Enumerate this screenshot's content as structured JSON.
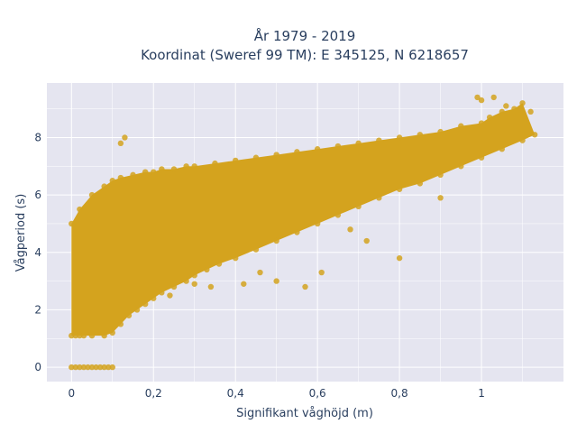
{
  "chart_data": {
    "type": "scatter",
    "title_lines": [
      "År 1979 - 2019",
      "Koordinat (Sweref 99 TM): E 345125, N 6218657"
    ],
    "xlabel": "Signifikant våghöjd (m)",
    "ylabel": "Vågperiod (s)",
    "xlim": [
      -0.06,
      1.2
    ],
    "ylim": [
      -0.5,
      9.9
    ],
    "x_ticks": [
      0,
      0.2,
      0.4,
      0.6,
      0.8,
      1
    ],
    "x_tick_labels": [
      "0",
      "0,2",
      "0,4",
      "0,6",
      "0,8",
      "1"
    ],
    "y_ticks": [
      0,
      2,
      4,
      6,
      8
    ],
    "y_tick_labels": [
      "0",
      "2",
      "4",
      "6",
      "8"
    ],
    "grid": true,
    "marker_color": "#D4A31E",
    "plot_background": "#E5E5F0",
    "grid_color": "#FFFFFF",
    "series": [
      {
        "x": [
          0.0,
          0.01,
          0.02,
          0.03,
          0.04,
          0.05,
          0.06,
          0.07,
          0.08,
          0.09,
          0.1,
          0.0,
          0.01,
          0.02,
          0.03,
          0.05,
          0.08,
          0.1,
          0.12,
          0.14,
          0.16,
          0.18,
          0.2,
          0.22,
          0.25,
          0.28,
          0.3,
          0.33,
          0.36,
          0.4,
          0.45,
          0.5,
          0.55,
          0.6,
          0.65,
          0.7,
          0.75,
          0.8,
          0.85,
          0.9,
          0.95,
          1.0,
          1.05,
          1.1,
          1.13,
          0.0,
          0.02,
          0.05,
          0.08,
          0.1,
          0.12,
          0.15,
          0.18,
          0.2,
          0.22,
          0.25,
          0.28,
          0.3,
          0.35,
          0.4,
          0.45,
          0.5,
          0.55,
          0.6,
          0.65,
          0.7,
          0.75,
          0.8,
          0.85,
          0.9,
          0.95,
          1.0,
          1.02,
          1.05,
          1.08,
          1.1,
          0.12,
          0.13,
          0.99,
          1.0,
          1.03,
          1.06,
          1.12,
          0.3,
          0.42,
          0.5,
          0.57,
          0.61,
          0.72,
          0.8,
          0.24,
          0.34,
          0.46,
          0.68,
          0.9
        ],
        "y": [
          0,
          0,
          0,
          0,
          0,
          0,
          0,
          0,
          0,
          0,
          0,
          1.1,
          1.1,
          1.1,
          1.1,
          1.1,
          1.1,
          1.2,
          1.5,
          1.8,
          2.0,
          2.2,
          2.4,
          2.6,
          2.8,
          3.0,
          3.2,
          3.4,
          3.6,
          3.8,
          4.1,
          4.4,
          4.7,
          5.0,
          5.3,
          5.6,
          5.9,
          6.2,
          6.4,
          6.7,
          7.0,
          7.3,
          7.6,
          7.9,
          8.1,
          5.0,
          5.5,
          6.0,
          6.3,
          6.5,
          6.6,
          6.7,
          6.8,
          6.8,
          6.9,
          6.9,
          7.0,
          7.0,
          7.1,
          7.2,
          7.3,
          7.4,
          7.5,
          7.6,
          7.7,
          7.8,
          7.9,
          8.0,
          8.1,
          8.2,
          8.4,
          8.5,
          8.7,
          8.9,
          9.0,
          9.2,
          7.8,
          8.0,
          9.4,
          9.3,
          9.4,
          9.1,
          8.9,
          2.9,
          2.9,
          3.0,
          2.8,
          3.3,
          4.4,
          3.8,
          2.5,
          2.8,
          3.3,
          4.8,
          5.9
        ]
      }
    ]
  }
}
